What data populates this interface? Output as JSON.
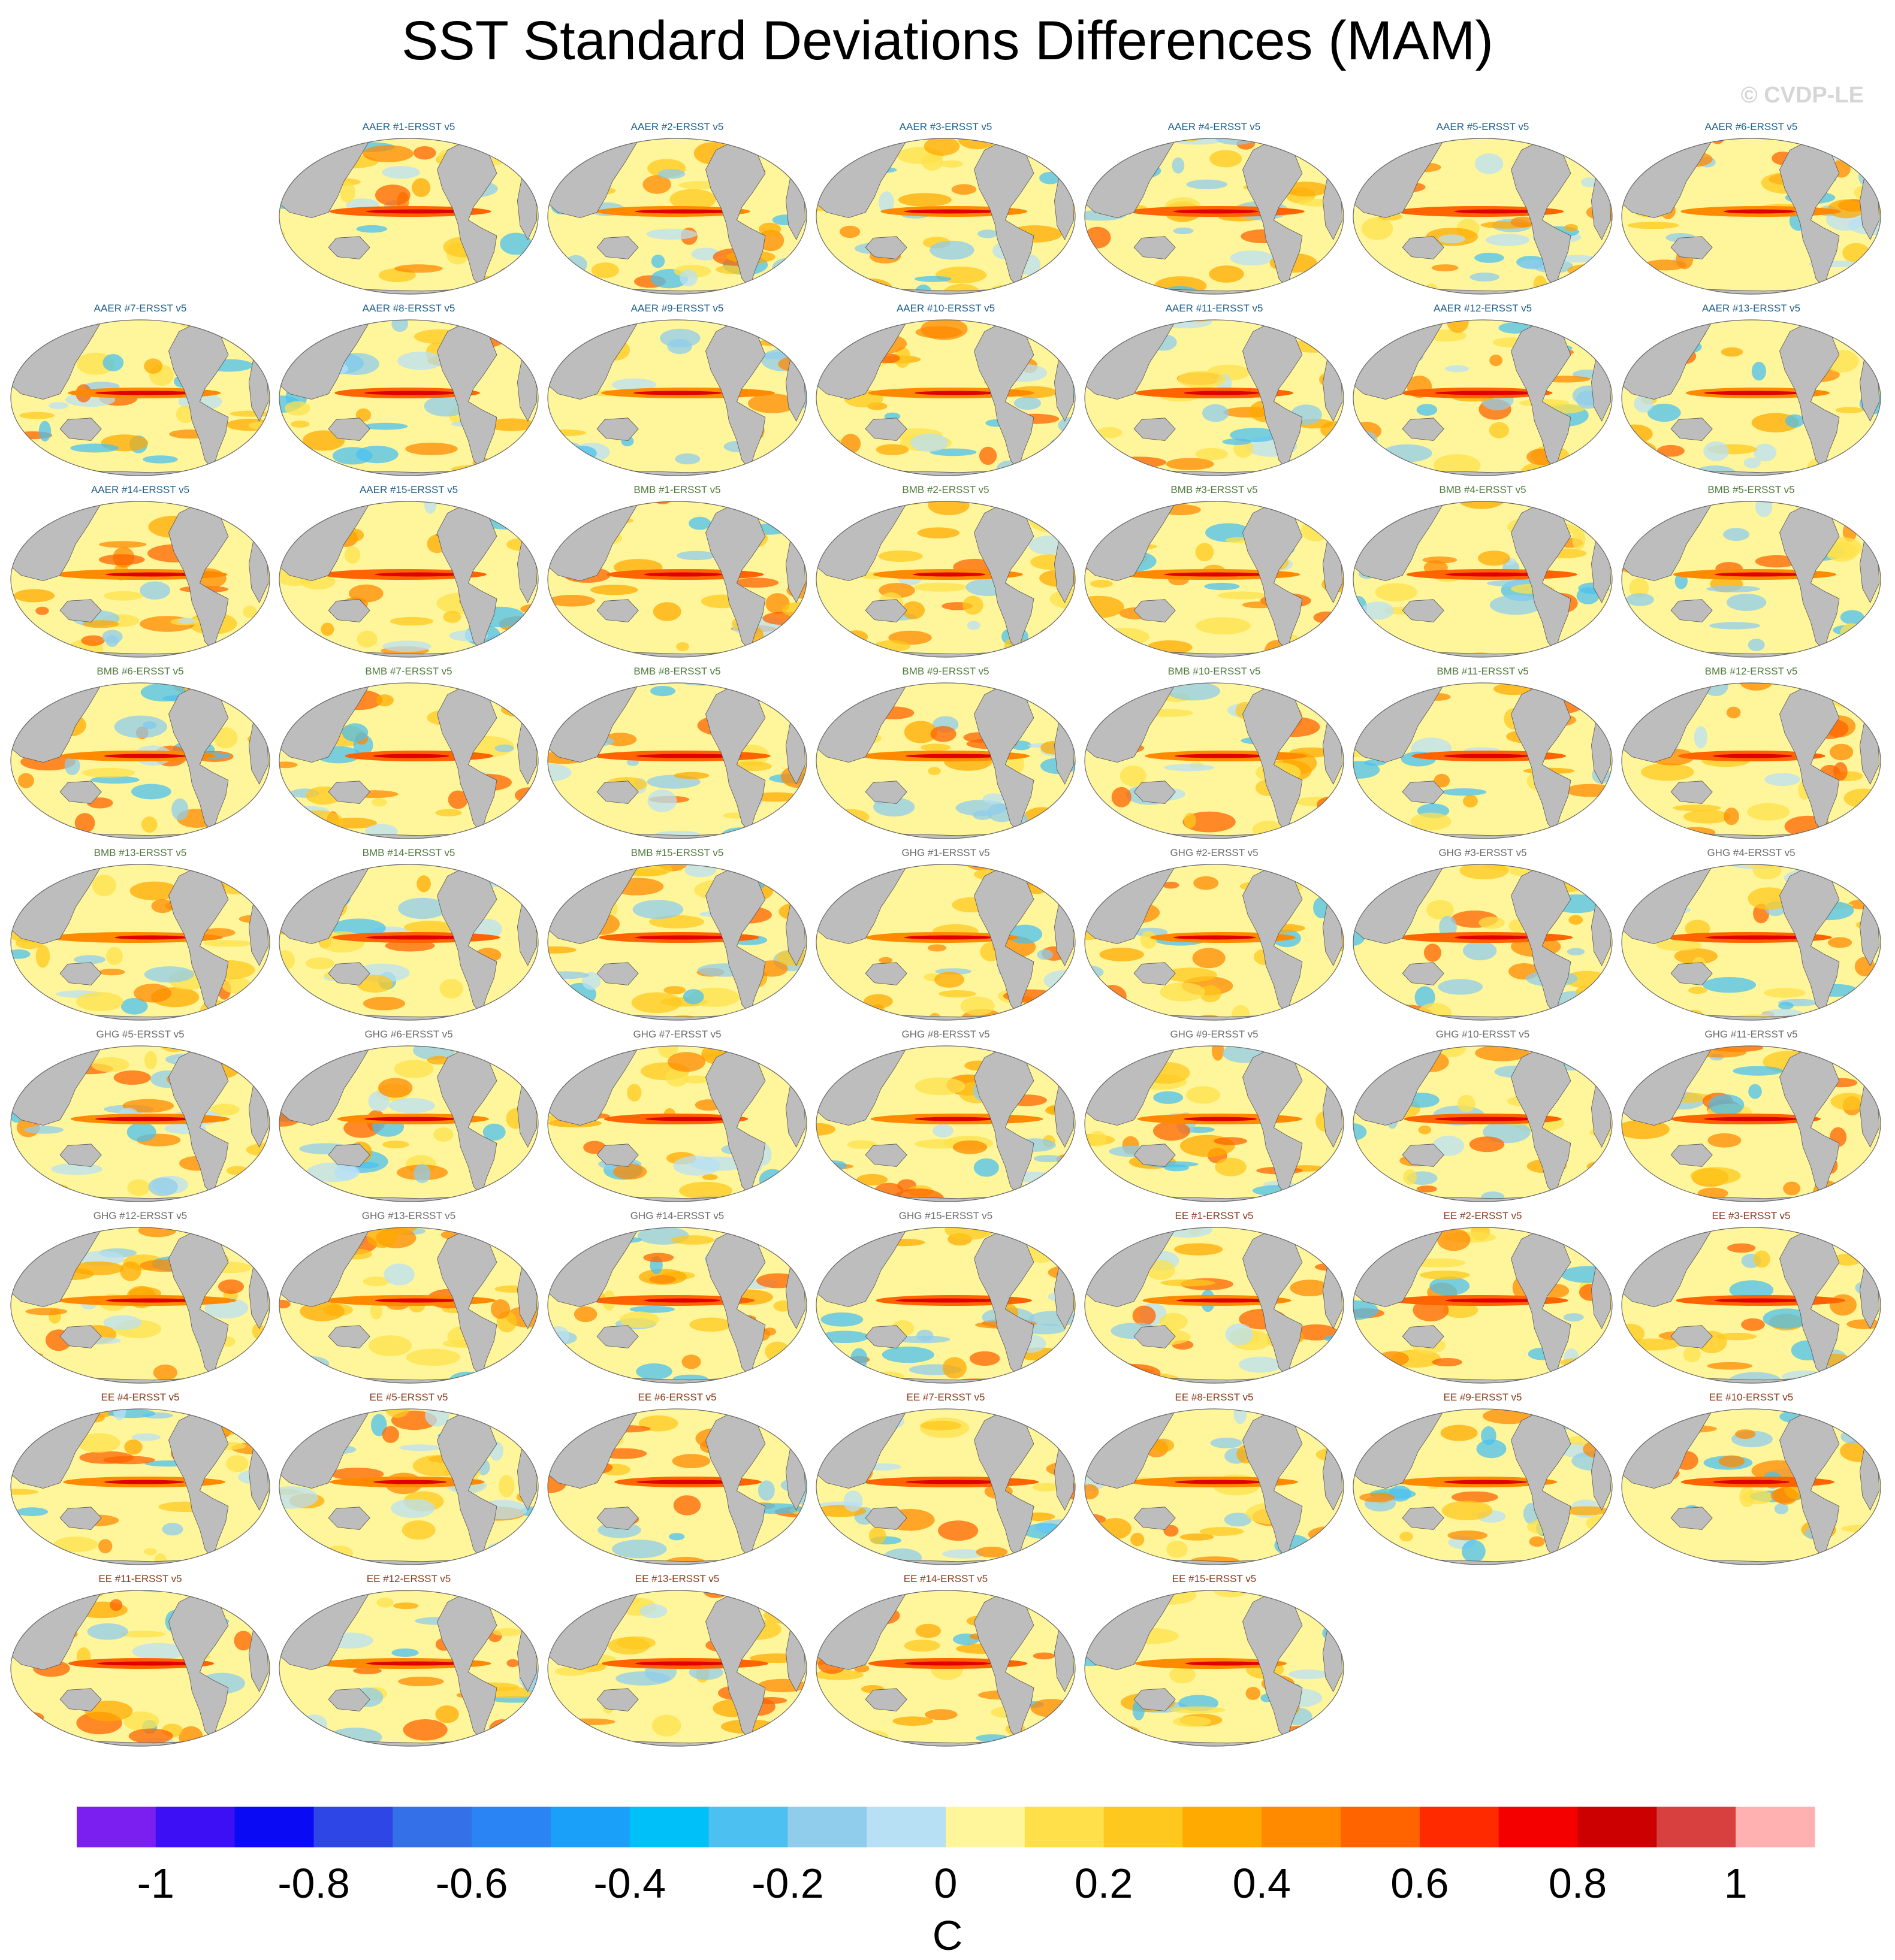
{
  "figure": {
    "title": "SST Standard Deviations Differences (MAM)",
    "watermark": "© CVDP-LE"
  },
  "colors": {
    "ocean_fill": "#fff59a",
    "land_fill": "#bdbdbd",
    "coast_stroke": "#555555",
    "panel_title_colors": {
      "AAER": "#1f5f8b",
      "BMB": "#4f7a3a",
      "GHG": "#6b6b6b",
      "EE": "#8b3a1a"
    }
  },
  "chart_data": {
    "type": "heatmap",
    "description_type": "panel map grid",
    "panels": [
      {
        "title": "AAER #1-ERSST v5",
        "group": "AAER"
      },
      {
        "title": "AAER #2-ERSST v5",
        "group": "AAER"
      },
      {
        "title": "AAER #3-ERSST v5",
        "group": "AAER"
      },
      {
        "title": "AAER #4-ERSST v5",
        "group": "AAER"
      },
      {
        "title": "AAER #5-ERSST v5",
        "group": "AAER"
      },
      {
        "title": "AAER #6-ERSST v5",
        "group": "AAER"
      },
      {
        "title": "AAER #7-ERSST v5",
        "group": "AAER"
      },
      {
        "title": "AAER #8-ERSST v5",
        "group": "AAER"
      },
      {
        "title": "AAER #9-ERSST v5",
        "group": "AAER"
      },
      {
        "title": "AAER #10-ERSST v5",
        "group": "AAER"
      },
      {
        "title": "AAER #11-ERSST v5",
        "group": "AAER"
      },
      {
        "title": "AAER #12-ERSST v5",
        "group": "AAER"
      },
      {
        "title": "AAER #13-ERSST v5",
        "group": "AAER"
      },
      {
        "title": "AAER #14-ERSST v5",
        "group": "AAER"
      },
      {
        "title": "AAER #15-ERSST v5",
        "group": "AAER"
      },
      {
        "title": "BMB #1-ERSST v5",
        "group": "BMB"
      },
      {
        "title": "BMB #2-ERSST v5",
        "group": "BMB"
      },
      {
        "title": "BMB #3-ERSST v5",
        "group": "BMB"
      },
      {
        "title": "BMB #4-ERSST v5",
        "group": "BMB"
      },
      {
        "title": "BMB #5-ERSST v5",
        "group": "BMB"
      },
      {
        "title": "BMB #6-ERSST v5",
        "group": "BMB"
      },
      {
        "title": "BMB #7-ERSST v5",
        "group": "BMB"
      },
      {
        "title": "BMB #8-ERSST v5",
        "group": "BMB"
      },
      {
        "title": "BMB #9-ERSST v5",
        "group": "BMB"
      },
      {
        "title": "BMB #10-ERSST v5",
        "group": "BMB"
      },
      {
        "title": "BMB #11-ERSST v5",
        "group": "BMB"
      },
      {
        "title": "BMB #12-ERSST v5",
        "group": "BMB"
      },
      {
        "title": "BMB #13-ERSST v5",
        "group": "BMB"
      },
      {
        "title": "BMB #14-ERSST v5",
        "group": "BMB"
      },
      {
        "title": "BMB #15-ERSST v5",
        "group": "BMB"
      },
      {
        "title": "GHG #1-ERSST v5",
        "group": "GHG"
      },
      {
        "title": "GHG #2-ERSST v5",
        "group": "GHG"
      },
      {
        "title": "GHG #3-ERSST v5",
        "group": "GHG"
      },
      {
        "title": "GHG #4-ERSST v5",
        "group": "GHG"
      },
      {
        "title": "GHG #5-ERSST v5",
        "group": "GHG"
      },
      {
        "title": "GHG #6-ERSST v5",
        "group": "GHG"
      },
      {
        "title": "GHG #7-ERSST v5",
        "group": "GHG"
      },
      {
        "title": "GHG #8-ERSST v5",
        "group": "GHG"
      },
      {
        "title": "GHG #9-ERSST v5",
        "group": "GHG"
      },
      {
        "title": "GHG #10-ERSST v5",
        "group": "GHG"
      },
      {
        "title": "GHG #11-ERSST v5",
        "group": "GHG"
      },
      {
        "title": "GHG #12-ERSST v5",
        "group": "GHG"
      },
      {
        "title": "GHG #13-ERSST v5",
        "group": "GHG"
      },
      {
        "title": "GHG #14-ERSST v5",
        "group": "GHG"
      },
      {
        "title": "GHG #15-ERSST v5",
        "group": "GHG"
      },
      {
        "title": "EE #1-ERSST v5",
        "group": "EE"
      },
      {
        "title": "EE #2-ERSST v5",
        "group": "EE"
      },
      {
        "title": "EE #3-ERSST v5",
        "group": "EE"
      },
      {
        "title": "EE #4-ERSST v5",
        "group": "EE"
      },
      {
        "title": "EE #5-ERSST v5",
        "group": "EE"
      },
      {
        "title": "EE #6-ERSST v5",
        "group": "EE"
      },
      {
        "title": "EE #7-ERSST v5",
        "group": "EE"
      },
      {
        "title": "EE #8-ERSST v5",
        "group": "EE"
      },
      {
        "title": "EE #9-ERSST v5",
        "group": "EE"
      },
      {
        "title": "EE #10-ERSST v5",
        "group": "EE"
      },
      {
        "title": "EE #11-ERSST v5",
        "group": "EE"
      },
      {
        "title": "EE #12-ERSST v5",
        "group": "EE"
      },
      {
        "title": "EE #13-ERSST v5",
        "group": "EE"
      },
      {
        "title": "EE #14-ERSST v5",
        "group": "EE"
      },
      {
        "title": "EE #15-ERSST v5",
        "group": "EE"
      }
    ],
    "colorbar": {
      "unit": "C",
      "range": [
        -1.1,
        1.1
      ],
      "step": 0.1,
      "tick_labels": [
        "-1",
        "-0.8",
        "-0.6",
        "-0.4",
        "-0.2",
        "0",
        "0.2",
        "0.4",
        "0.6",
        "0.8",
        "1"
      ],
      "colors": [
        "#7a1ff0",
        "#3c0ff5",
        "#0a0af5",
        "#2e46e6",
        "#3470e8",
        "#2a84f4",
        "#1aa0f8",
        "#00c0fa",
        "#4cc0f0",
        "#90ccec",
        "#b8e0f4",
        "#fff59a",
        "#ffe04a",
        "#ffc81e",
        "#ffaa00",
        "#ff8a00",
        "#ff6400",
        "#ff2a00",
        "#f50000",
        "#cc0000",
        "#d84040",
        "#ffb0b0"
      ]
    }
  }
}
